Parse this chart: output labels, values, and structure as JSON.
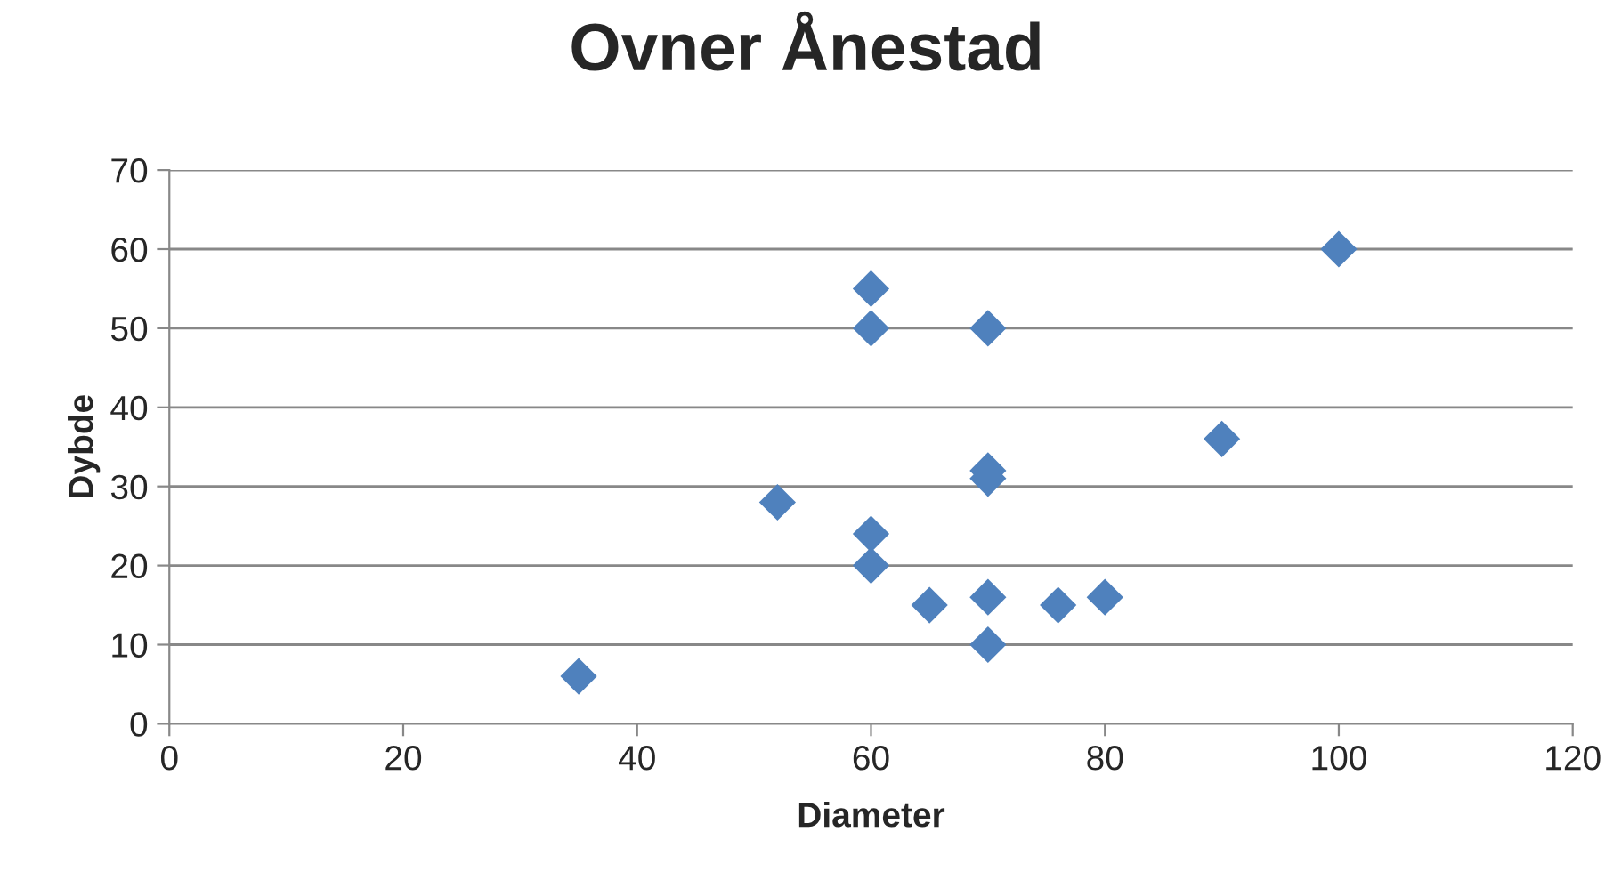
{
  "chart_data": {
    "type": "scatter",
    "title": "Ovner Ånestad",
    "xlabel": "Diameter",
    "ylabel": "Dybde",
    "x": [
      35,
      52,
      60,
      60,
      60,
      60,
      65,
      70,
      70,
      70,
      70,
      70,
      76,
      80,
      90,
      100
    ],
    "values": [
      6,
      28,
      55,
      50,
      24,
      20,
      15,
      50,
      32,
      31,
      16,
      10,
      15,
      16,
      36,
      60
    ],
    "color": "#4f81bd",
    "marker": "diamond",
    "grid": "y",
    "xlim": [
      0,
      120
    ],
    "xticks": [
      0,
      20,
      40,
      60,
      80,
      100,
      120
    ],
    "ylim": [
      0,
      70
    ],
    "yticks": [
      0,
      10,
      20,
      30,
      40,
      50,
      60,
      70
    ]
  }
}
